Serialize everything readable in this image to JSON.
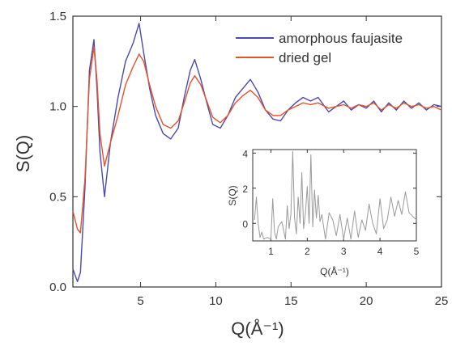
{
  "chart_data": [
    {
      "type": "line",
      "xlabel": "Q(Å⁻¹)",
      "ylabel": "S(Q)",
      "xlim": [
        0.5,
        25
      ],
      "ylim": [
        0,
        1.5
      ],
      "xticks": [
        "5",
        "10",
        "15",
        "20",
        "25"
      ],
      "yticks": [
        "0.0",
        "0.5",
        "1.0",
        "1.5"
      ],
      "grid": false,
      "legend": "top-right",
      "series": [
        {
          "name": "amorphous faujasite",
          "color": "#4a4ab0",
          "x": [
            0.5,
            0.8,
            1.0,
            1.3,
            1.6,
            1.9,
            2.1,
            2.3,
            2.6,
            3.0,
            3.5,
            4.0,
            4.5,
            4.9,
            5.2,
            5.6,
            6.0,
            6.5,
            7.0,
            7.5,
            7.9,
            8.3,
            8.6,
            9.0,
            9.4,
            9.8,
            10.3,
            10.8,
            11.3,
            11.8,
            12.3,
            12.8,
            13.3,
            13.8,
            14.3,
            14.8,
            15.3,
            15.8,
            16.3,
            16.8,
            17.5,
            18.0,
            18.5,
            19.0,
            19.5,
            20.0,
            20.5,
            21.0,
            21.5,
            22.0,
            22.5,
            23.0,
            23.5,
            24.0,
            24.5,
            25.0
          ],
          "y": [
            0.1,
            0.03,
            0.08,
            0.55,
            1.2,
            1.37,
            1.1,
            0.75,
            0.5,
            0.8,
            1.05,
            1.25,
            1.35,
            1.46,
            1.3,
            1.1,
            0.95,
            0.85,
            0.82,
            0.88,
            1.05,
            1.2,
            1.26,
            1.15,
            1.02,
            0.9,
            0.88,
            0.95,
            1.05,
            1.1,
            1.15,
            1.08,
            0.98,
            0.93,
            0.92,
            0.98,
            1.02,
            1.05,
            1.03,
            1.05,
            0.97,
            1.0,
            1.03,
            0.98,
            1.01,
            0.99,
            1.03,
            0.97,
            1.02,
            0.98,
            1.03,
            0.99,
            1.02,
            0.98,
            1.01,
            1.0
          ]
        },
        {
          "name": "dried gel",
          "color": "#e8512a",
          "x": [
            0.5,
            0.8,
            1.0,
            1.3,
            1.6,
            1.9,
            2.1,
            2.3,
            2.6,
            3.0,
            3.5,
            4.0,
            4.5,
            4.9,
            5.2,
            5.6,
            6.0,
            6.5,
            7.0,
            7.5,
            7.9,
            8.3,
            8.6,
            9.0,
            9.4,
            9.8,
            10.3,
            10.8,
            11.3,
            11.8,
            12.3,
            12.8,
            13.3,
            13.8,
            14.3,
            14.8,
            15.3,
            15.8,
            16.3,
            16.8,
            17.5,
            18.0,
            18.5,
            19.0,
            19.5,
            20.0,
            20.5,
            21.0,
            21.5,
            22.0,
            22.5,
            23.0,
            23.5,
            24.0,
            24.5,
            25.0
          ],
          "y": [
            0.42,
            0.32,
            0.3,
            0.6,
            1.15,
            1.33,
            1.15,
            0.85,
            0.67,
            0.8,
            0.95,
            1.12,
            1.22,
            1.29,
            1.25,
            1.12,
            1.0,
            0.9,
            0.88,
            0.92,
            1.02,
            1.13,
            1.17,
            1.12,
            1.03,
            0.94,
            0.91,
            0.95,
            1.02,
            1.06,
            1.09,
            1.05,
            0.98,
            0.95,
            0.95,
            0.98,
            1.0,
            1.02,
            1.01,
            1.02,
            0.99,
            1.0,
            1.01,
            0.99,
            1.01,
            1.0,
            1.02,
            0.98,
            1.01,
            0.99,
            1.02,
            1.0,
            1.01,
            0.99,
            1.0,
            0.98
          ]
        }
      ]
    },
    {
      "type": "line",
      "xlabel": "Q(Å⁻¹)",
      "ylabel": "S(Q)",
      "xlim": [
        0.5,
        5
      ],
      "ylim": [
        -1,
        4.2
      ],
      "xticks": [
        "1",
        "2",
        "3",
        "4",
        "5"
      ],
      "yticks": [
        "0",
        "2",
        "4"
      ],
      "grid": false,
      "series": [
        {
          "color": "#9a9a9a",
          "x": [
            0.55,
            0.6,
            0.65,
            0.7,
            0.75,
            0.8,
            0.9,
            1.0,
            1.05,
            1.1,
            1.15,
            1.2,
            1.3,
            1.4,
            1.45,
            1.5,
            1.55,
            1.6,
            1.65,
            1.7,
            1.75,
            1.8,
            1.85,
            1.9,
            1.95,
            2.0,
            2.05,
            2.1,
            2.15,
            2.2,
            2.25,
            2.3,
            2.35,
            2.4,
            2.5,
            2.6,
            2.7,
            2.8,
            2.9,
            3.0,
            3.1,
            3.2,
            3.3,
            3.4,
            3.5,
            3.6,
            3.7,
            3.8,
            3.9,
            4.0,
            4.1,
            4.2,
            4.3,
            4.4,
            4.5,
            4.6,
            4.7,
            4.8,
            4.9,
            5.0
          ],
          "y": [
            0.2,
            1.5,
            0.0,
            -0.8,
            -0.5,
            -0.9,
            -0.8,
            -0.9,
            1.4,
            -0.5,
            -0.9,
            -0.2,
            0.1,
            -0.9,
            1.0,
            -0.3,
            0.5,
            4.1,
            0.3,
            -0.6,
            1.5,
            0.0,
            2.9,
            -0.3,
            0.6,
            2.1,
            0.0,
            3.9,
            -0.2,
            1.9,
            0.3,
            1.6,
            0.1,
            0.5,
            -0.9,
            0.6,
            0.2,
            -0.7,
            0.5,
            -0.9,
            0.3,
            -0.9,
            0.7,
            -0.8,
            0.2,
            -0.4,
            1.1,
            0.0,
            -0.6,
            1.4,
            -0.3,
            0.2,
            1.5,
            0.4,
            1.3,
            0.5,
            1.8,
            0.6,
            0.4,
            0.2
          ]
        }
      ]
    }
  ],
  "legend": {
    "entries": [
      {
        "label": "amorphous faujasite",
        "color": "#4a4ab0"
      },
      {
        "label": "dried gel",
        "color": "#e8512a"
      }
    ]
  },
  "axes": {
    "ylabel": "S(Q)",
    "xlabel": "Q(Å⁻¹)",
    "inset_ylabel": "S(Q)",
    "inset_xlabel": "Q(Å⁻¹)"
  }
}
